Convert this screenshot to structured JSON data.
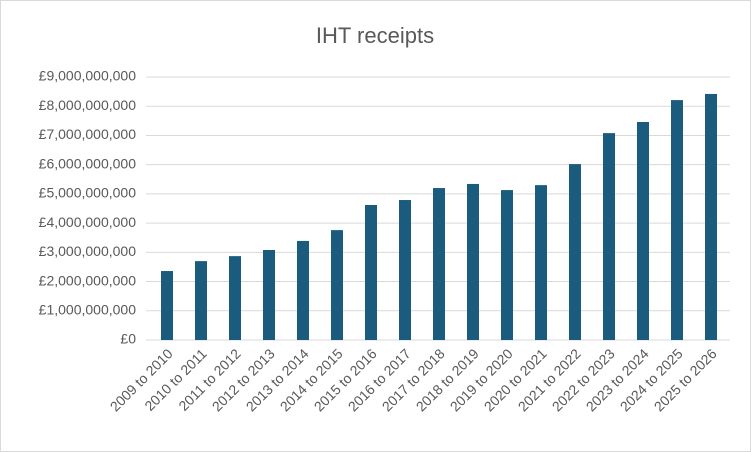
{
  "chart_data": {
    "type": "bar",
    "title": "IHT receipts",
    "categories": [
      "2009 to 2010",
      "2010 to 2011",
      "2011 to 2012",
      "2012 to 2013",
      "2013 to 2014",
      "2014 to 2015",
      "2015 to 2016",
      "2016 to 2017",
      "2017 to 2018",
      "2018 to 2019",
      "2019 to 2020",
      "2020 to 2021",
      "2021 to 2022",
      "2022 to 2023",
      "2023 to 2024",
      "2024 to 2025",
      "2025 to 2026"
    ],
    "values": [
      2360000000,
      2700000000,
      2870000000,
      3080000000,
      3390000000,
      3760000000,
      4620000000,
      4790000000,
      5200000000,
      5340000000,
      5130000000,
      5300000000,
      6020000000,
      7080000000,
      7460000000,
      8210000000,
      8420000000
    ],
    "color": "#1b5c7e",
    "ylim": [
      0,
      9000000000
    ],
    "yticks": [
      {
        "value": 0,
        "label": "£0"
      },
      {
        "value": 1000000000,
        "label": "£1,000,000,000"
      },
      {
        "value": 2000000000,
        "label": "£2,000,000,000"
      },
      {
        "value": 3000000000,
        "label": "£3,000,000,000"
      },
      {
        "value": 4000000000,
        "label": "£4,000,000,000"
      },
      {
        "value": 5000000000,
        "label": "£5,000,000,000"
      },
      {
        "value": 6000000000,
        "label": "£6,000,000,000"
      },
      {
        "value": 7000000000,
        "label": "£7,000,000,000"
      },
      {
        "value": 8000000000,
        "label": "£8,000,000,000"
      },
      {
        "value": 9000000000,
        "label": "£9,000,000,000"
      }
    ],
    "grid": true
  }
}
